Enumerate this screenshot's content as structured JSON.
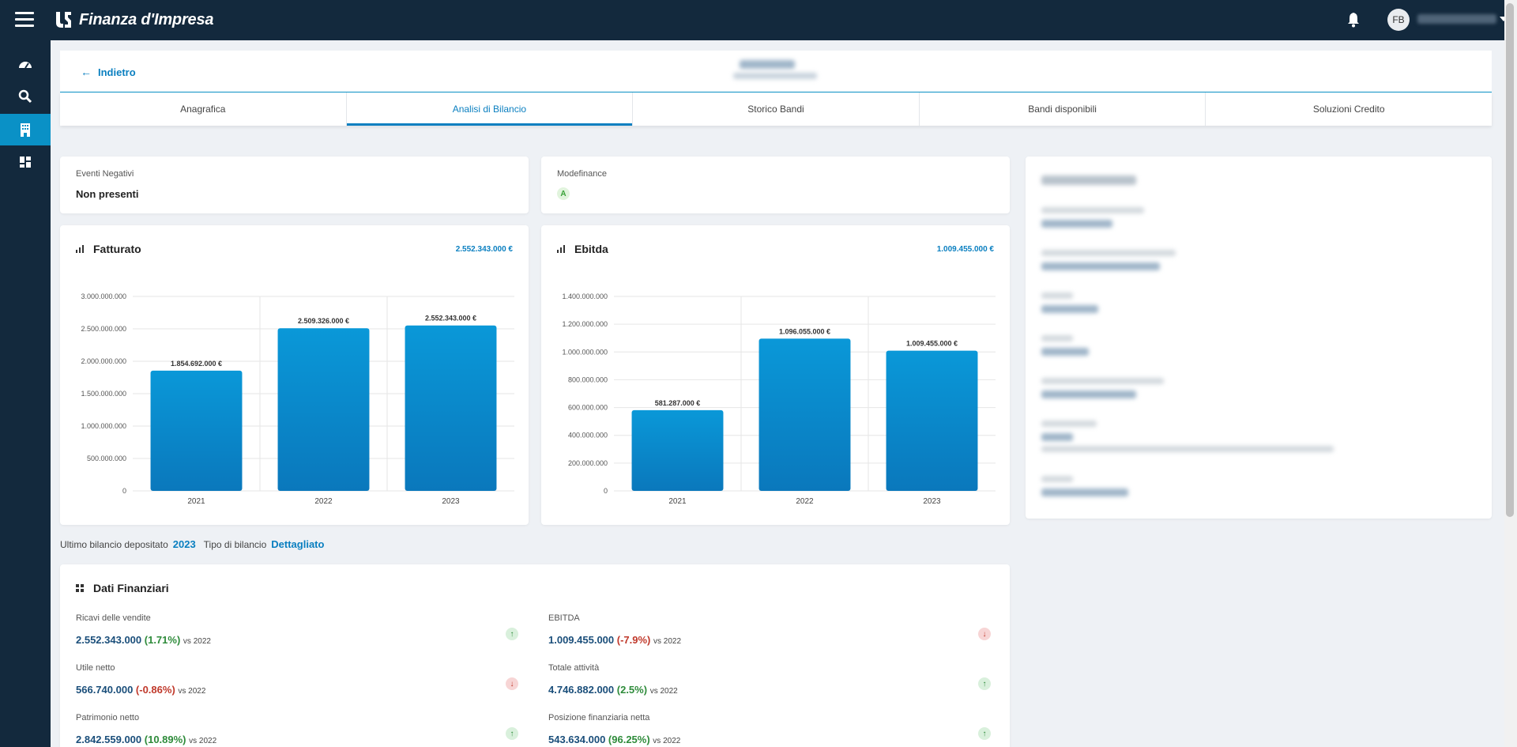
{
  "app": {
    "title": "Finanza d'Impresa"
  },
  "user": {
    "initials": "FB"
  },
  "header": {
    "back_label": "Indietro"
  },
  "tabs": [
    {
      "label": "Anagrafica"
    },
    {
      "label": "Analisi di Bilancio"
    },
    {
      "label": "Storico Bandi"
    },
    {
      "label": "Bandi disponibili"
    },
    {
      "label": "Soluzioni Credito"
    }
  ],
  "eventi": {
    "label": "Eventi Negativi",
    "value": "Non presenti"
  },
  "modefinance": {
    "label": "Modefinance",
    "value": "A"
  },
  "bilancio": {
    "ultimo_label": "Ultimo bilancio depositato",
    "ultimo_value": "2023",
    "tipo_label": "Tipo di bilancio",
    "tipo_value": "Dettagliato"
  },
  "colors": {
    "accent": "#0a7fc0",
    "topbar": "#13293d",
    "bar": "#0a8fd0",
    "positive": "#2e8b3a",
    "negative": "#c0392b"
  },
  "chart_data": [
    {
      "type": "bar",
      "title": "Fatturato",
      "total_label": "2.552.343.000 €",
      "categories": [
        "2021",
        "2022",
        "2023"
      ],
      "values": [
        1854692000,
        2509326000,
        2552343000
      ],
      "value_labels": [
        "1.854.692.000 €",
        "2.509.326.000 €",
        "2.552.343.000 €"
      ],
      "ylim": [
        0,
        3000000000
      ],
      "yticks": [
        0,
        500000000,
        1000000000,
        1500000000,
        2000000000,
        2500000000,
        3000000000
      ],
      "ytick_labels": [
        "0",
        "500.000.000",
        "1.000.000.000",
        "1.500.000.000",
        "2.000.000.000",
        "2.500.000.000",
        "3.000.000.000"
      ],
      "grid": true
    },
    {
      "type": "bar",
      "title": "Ebitda",
      "total_label": "1.009.455.000 €",
      "categories": [
        "2021",
        "2022",
        "2023"
      ],
      "values": [
        581287000,
        1096055000,
        1009455000
      ],
      "value_labels": [
        "581.287.000 €",
        "1.096.055.000 €",
        "1.009.455.000 €"
      ],
      "ylim": [
        0,
        1400000000
      ],
      "yticks": [
        0,
        200000000,
        400000000,
        600000000,
        800000000,
        1000000000,
        1200000000,
        1400000000
      ],
      "ytick_labels": [
        "0",
        "200.000.000",
        "400.000.000",
        "600.000.000",
        "800.000.000",
        "1.000.000.000",
        "1.200.000.000",
        "1.400.000.000"
      ],
      "grid": true
    }
  ],
  "dati_finanziari": {
    "title": "Dati Finanziari",
    "items": [
      {
        "label": "Ricavi delle vendite",
        "value": "2.552.343.000",
        "change": "(1.71%)",
        "vs": "vs 2022",
        "trend": "up"
      },
      {
        "label": "EBITDA",
        "value": "1.009.455.000",
        "change": "(-7.9%)",
        "vs": "vs 2022",
        "trend": "down"
      },
      {
        "label": "Utile netto",
        "value": "566.740.000",
        "change": "(-0.86%)",
        "vs": "vs 2022",
        "trend": "down"
      },
      {
        "label": "Totale attività",
        "value": "4.746.882.000",
        "change": "(2.5%)",
        "vs": "vs 2022",
        "trend": "up"
      },
      {
        "label": "Patrimonio netto",
        "value": "2.842.559.000",
        "change": "(10.89%)",
        "vs": "vs 2022",
        "trend": "up"
      },
      {
        "label": "Posizione finanziaria netta",
        "value": "543.634.000",
        "change": "(96.25%)",
        "vs": "vs 2022",
        "trend": "up"
      }
    ]
  }
}
